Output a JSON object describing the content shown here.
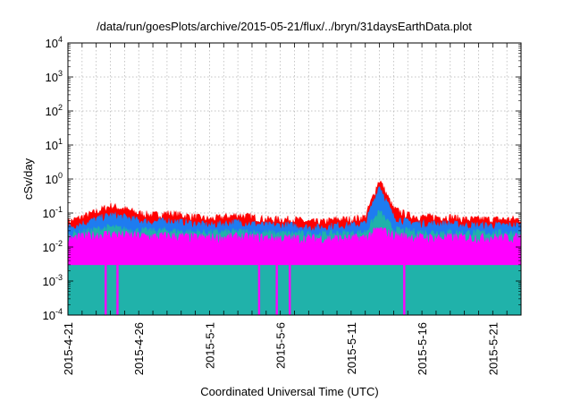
{
  "chart_data": {
    "type": "area",
    "title": "/data/run/goesPlots/archive/2015-05-21/flux/../bryn/31daysEarthData.plot",
    "xlabel": "Coordinated Universal Time (UTC)",
    "ylabel": "cSv/day",
    "y_scale": "log",
    "ylim": [
      0.0001,
      10000
    ],
    "xlim": [
      "2015-04-21",
      "2015-05-23"
    ],
    "grid": true,
    "y_ticks": [
      {
        "value": 0.0001,
        "mant": "10",
        "exp": "-4"
      },
      {
        "value": 0.001,
        "mant": "10",
        "exp": "-3"
      },
      {
        "value": 0.01,
        "mant": "10",
        "exp": "-2"
      },
      {
        "value": 0.1,
        "mant": "10",
        "exp": "-1"
      },
      {
        "value": 1,
        "mant": "10",
        "exp": "0"
      },
      {
        "value": 10,
        "mant": "10",
        "exp": "1"
      },
      {
        "value": 100,
        "mant": "10",
        "exp": "2"
      },
      {
        "value": 1000,
        "mant": "10",
        "exp": "3"
      },
      {
        "value": 10000,
        "mant": "10",
        "exp": "4"
      }
    ],
    "x_ticks": [
      "2015-4-21",
      "2015-4-26",
      "2015-5-1",
      "2015-5-6",
      "2015-5-11",
      "2015-5-16",
      "2015-5-21"
    ],
    "series": [
      {
        "color": "#ff0000",
        "x": [
          "2015-04-21",
          "2015-04-22",
          "2015-04-23",
          "2015-04-24",
          "2015-04-25",
          "2015-04-26",
          "2015-04-27",
          "2015-04-28",
          "2015-04-29",
          "2015-04-30",
          "2015-05-01",
          "2015-05-02",
          "2015-05-03",
          "2015-05-04",
          "2015-05-05",
          "2015-05-06",
          "2015-05-07",
          "2015-05-08",
          "2015-05-09",
          "2015-05-10",
          "2015-05-11",
          "2015-05-12",
          "2015-05-13",
          "2015-05-14",
          "2015-05-15",
          "2015-05-16",
          "2015-05-17",
          "2015-05-18",
          "2015-05-19",
          "2015-05-20",
          "2015-05-21",
          "2015-05-22",
          "2015-05-23"
        ],
        "values": [
          0.05,
          0.07,
          0.1,
          0.15,
          0.12,
          0.09,
          0.08,
          0.09,
          0.08,
          0.07,
          0.06,
          0.07,
          0.08,
          0.07,
          0.06,
          0.06,
          0.06,
          0.05,
          0.05,
          0.06,
          0.06,
          0.07,
          0.9,
          0.12,
          0.08,
          0.07,
          0.07,
          0.07,
          0.06,
          0.06,
          0.06,
          0.06,
          0.06
        ]
      },
      {
        "color": "#1e7cf0",
        "x": [
          "2015-04-21",
          "2015-04-22",
          "2015-04-23",
          "2015-04-24",
          "2015-04-25",
          "2015-04-26",
          "2015-04-27",
          "2015-04-28",
          "2015-04-29",
          "2015-04-30",
          "2015-05-01",
          "2015-05-02",
          "2015-05-03",
          "2015-05-04",
          "2015-05-05",
          "2015-05-06",
          "2015-05-07",
          "2015-05-08",
          "2015-05-09",
          "2015-05-10",
          "2015-05-11",
          "2015-05-12",
          "2015-05-13",
          "2015-05-14",
          "2015-05-15",
          "2015-05-16",
          "2015-05-17",
          "2015-05-18",
          "2015-05-19",
          "2015-05-20",
          "2015-05-21",
          "2015-05-22",
          "2015-05-23"
        ],
        "values": [
          0.035,
          0.045,
          0.06,
          0.08,
          0.07,
          0.055,
          0.05,
          0.055,
          0.05,
          0.045,
          0.04,
          0.045,
          0.05,
          0.045,
          0.04,
          0.04,
          0.04,
          0.035,
          0.035,
          0.04,
          0.04,
          0.045,
          0.6,
          0.07,
          0.05,
          0.045,
          0.045,
          0.045,
          0.04,
          0.04,
          0.04,
          0.04,
          0.04
        ]
      },
      {
        "color": "#20b2aa",
        "x": [
          "2015-04-21",
          "2015-04-22",
          "2015-04-23",
          "2015-04-24",
          "2015-04-25",
          "2015-04-26",
          "2015-04-27",
          "2015-04-28",
          "2015-04-29",
          "2015-04-30",
          "2015-05-01",
          "2015-05-02",
          "2015-05-03",
          "2015-05-04",
          "2015-05-05",
          "2015-05-06",
          "2015-05-07",
          "2015-05-08",
          "2015-05-09",
          "2015-05-10",
          "2015-05-11",
          "2015-05-12",
          "2015-05-13",
          "2015-05-14",
          "2015-05-15",
          "2015-05-16",
          "2015-05-17",
          "2015-05-18",
          "2015-05-19",
          "2015-05-20",
          "2015-05-21",
          "2015-05-22",
          "2015-05-23"
        ],
        "values": [
          0.02,
          0.025,
          0.03,
          0.035,
          0.03,
          0.028,
          0.027,
          0.028,
          0.026,
          0.025,
          0.024,
          0.025,
          0.026,
          0.025,
          0.024,
          0.023,
          0.023,
          0.022,
          0.022,
          0.023,
          0.023,
          0.025,
          0.1,
          0.03,
          0.027,
          0.025,
          0.025,
          0.025,
          0.024,
          0.024,
          0.024,
          0.024,
          0.024
        ]
      },
      {
        "color": "#ff00ff",
        "x": [
          "2015-04-21",
          "2015-04-22",
          "2015-04-23",
          "2015-04-24",
          "2015-04-25",
          "2015-04-26",
          "2015-04-27",
          "2015-04-28",
          "2015-04-29",
          "2015-04-30",
          "2015-05-01",
          "2015-05-02",
          "2015-05-03",
          "2015-05-04",
          "2015-05-05",
          "2015-05-06",
          "2015-05-07",
          "2015-05-08",
          "2015-05-09",
          "2015-05-10",
          "2015-05-11",
          "2015-05-12",
          "2015-05-13",
          "2015-05-14",
          "2015-05-15",
          "2015-05-16",
          "2015-05-17",
          "2015-05-18",
          "2015-05-19",
          "2015-05-20",
          "2015-05-21",
          "2015-05-22",
          "2015-05-23"
        ],
        "values": [
          0.015,
          0.018,
          0.02,
          0.022,
          0.02,
          0.019,
          0.018,
          0.019,
          0.018,
          0.017,
          0.017,
          0.017,
          0.018,
          0.017,
          0.017,
          0.016,
          0.016,
          0.016,
          0.016,
          0.016,
          0.016,
          0.017,
          0.03,
          0.02,
          0.018,
          0.017,
          0.017,
          0.017,
          0.017,
          0.017,
          0.017,
          0.017,
          0.017
        ],
        "floor": 0.003,
        "dropouts": [
          "2015-04-23T16:00",
          "2015-04-24T12:00",
          "2015-05-04T12:00",
          "2015-05-05T18:00",
          "2015-05-06T16:00",
          "2015-05-14T18:00"
        ]
      }
    ]
  }
}
